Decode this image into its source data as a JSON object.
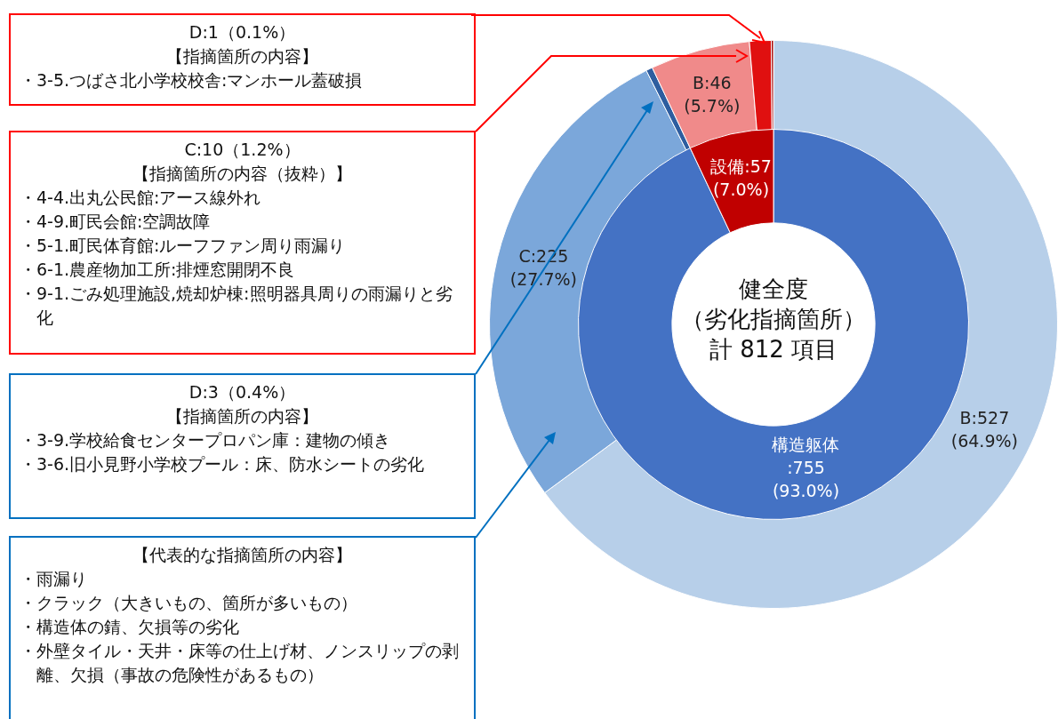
{
  "chart_data": [
    {
      "type": "donut",
      "categories": [
        "B",
        "C",
        null,
        "B",
        null,
        null
      ],
      "values": [
        527,
        225,
        3,
        46,
        10,
        1
      ],
      "colors": [
        "#b7cfe9",
        "#7ba7da",
        "#2e5d9f",
        "#f08a8a",
        "#e01010",
        "#a00000"
      ],
      "value_labels": [
        ":527\n(64.9%)",
        ":225\n(27.7%)",
        null,
        ":46\n(5.7%)",
        null,
        null
      ],
      "annotations": [
        "D:1（0.1%）",
        "【指摘箇所の内容】",
        "・3-5.つばさ北小学校校舎:マンホール蓋破損",
        "C:10（1.2%）",
        "【指摘箇所の内容（抜粋）】",
        "・4-4.出丸公民館:アース線外れ",
        "・4-9.町民会館:空調故障",
        "・5-1.町民体育館:ルーフファン周り雨漏り",
        "・6-1.農産物加工所:排煙窓開閉不良",
        "・9-1.ごみ処理施設,焼却炉棟:照明器具周りの雨漏りと劣化",
        "D:3（0.4%）",
        "【指摘箇所の内容】",
        "・3-9.学校給食センタープロパン庫：建物の傾き",
        "・3-6.旧小見野小学校プール：床、防水シートの劣化",
        "【代表的な指摘箇所の内容】",
        "・雨漏り",
        "・クラック（大きいもの、箇所が多いもの）",
        "・構造体の錆、欠損等の劣化",
        "・外壁タイル・天井・床等の仕上げ材、ノンスリップの剥離、欠損（事故の危険性があるもの）"
      ]
    },
    {
      "type": "donut",
      "title": "健全度（劣化指摘箇所）",
      "subtitle": "計 812 項目",
      "categories": [
        "構造躯体",
        "設備"
      ],
      "values": [
        755,
        57
      ],
      "colors": [
        "#4472c4",
        "#c00000"
      ],
      "value_labels": [
        "\n:755\n(93.0%)",
        ":57\n(7.0%)"
      ]
    }
  ]
}
